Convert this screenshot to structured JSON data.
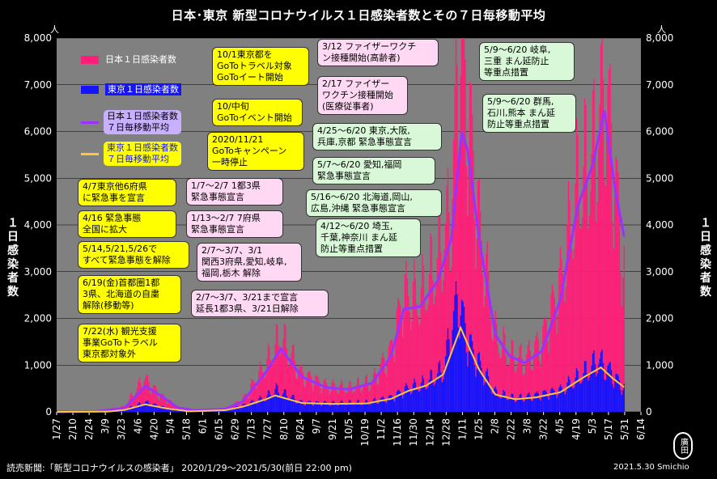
{
  "title": "日本･東京 新型コロナウイルス１日感染者数とその７日毎移動平均",
  "ylabel_left": "１日感染者数",
  "ylabel_right": "１日感染者数",
  "y_unit": "人",
  "legend": [
    {
      "label": "日本１日感染者数",
      "color": "#ff1e78"
    },
    {
      "label": "東京１日感染者数",
      "color": "#1414ff"
    },
    {
      "label": "日本１日感染者数\n７日毎移動平均",
      "color": "#9b30ff"
    },
    {
      "label": "東京１日感染者数\n７日毎移動平均",
      "color": "#ffc83c"
    }
  ],
  "notes": [
    {
      "id": "n1",
      "text": "10/1東京都を\nGoToトラベル対象\nGoToイート開始",
      "style": "yellow"
    },
    {
      "id": "n2",
      "text": "10/中旬\nGoToイベント開始",
      "style": "yellow"
    },
    {
      "id": "n3",
      "text": "2020/11/21\nGoToキャンペーン\n一時停止",
      "style": "yellow"
    },
    {
      "id": "n4",
      "text": "4/7東京他6府県\nに緊急事を宣言",
      "style": "yellow"
    },
    {
      "id": "n5",
      "text": "4/16 緊急事態\n全国に拡大",
      "style": "yellow"
    },
    {
      "id": "n6",
      "text": "5/14,5/21,5/26で\nすべて緊急事態を解除",
      "style": "yellow"
    },
    {
      "id": "n7",
      "text": "6/19(金)首都圏1都\n3県、北海道の自粛\n解除(移動等)",
      "style": "yellow"
    },
    {
      "id": "n8",
      "text": "7/22(水) 観光支援\n事業GoToトラベル\n東京都対象外",
      "style": "yellow"
    },
    {
      "id": "n9",
      "text": "1/7～2/7 1都3県\n緊急事態宣言",
      "style": "pink"
    },
    {
      "id": "n10",
      "text": "1/13～2/7 7府県\n緊急事態宣言",
      "style": "pink"
    },
    {
      "id": "n11",
      "text": "2/7～3/7、3/1\n関西3府県,愛知,岐阜,\n福岡,栃木 解除",
      "style": "pink"
    },
    {
      "id": "n12",
      "text": "2/7～3/7、3/21まで宣言\n延長1都3県、3/21日解除",
      "style": "pink"
    },
    {
      "id": "n13",
      "text": "3/12 ファイザーワクチ\nン接種開始(高齢者)",
      "style": "pink"
    },
    {
      "id": "n14",
      "text": "2/17 ファイザー\nワクチン接種開始\n(医療従事者)",
      "style": "pink"
    },
    {
      "id": "n15",
      "text": "4/25～6/20 東京,大阪,\n兵庫,京都 緊急事態宣言",
      "style": "green"
    },
    {
      "id": "n16",
      "text": "5/7～6/20 愛知,福岡\n緊急事態宣言",
      "style": "green"
    },
    {
      "id": "n17",
      "text": "5/16～6/20 北海道,岡山,\n広島,沖縄 緊急事態宣言",
      "style": "green"
    },
    {
      "id": "n18",
      "text": "4/12～6/20 埼玉,\n千葉,神奈川 まん延\n防止等重点措置",
      "style": "green"
    },
    {
      "id": "n19",
      "text": "5/9～6/20 岐阜,\n三重 まん延防止\n等重点措置",
      "style": "green"
    },
    {
      "id": "n20",
      "text": "5/9～6/20 群馬,\n石川,熊本 まん延\n防止等重点措置",
      "style": "green"
    }
  ],
  "source": "読売新聞:「新型コロナウイルスの感染者」 2020/1/29～2021/5/30(前日 22:00 pm)",
  "credit": "2021.5.30  Smichio",
  "seal": "廣田",
  "chart_data": {
    "type": "bar",
    "x_start": "2020-01-27",
    "x_ticks": [
      "1/27",
      "2/10",
      "2/24",
      "3/9",
      "3/23",
      "4/6",
      "4/20",
      "5/4",
      "5/18",
      "6/1",
      "6/15",
      "6/29",
      "7/13",
      "7/27",
      "8/10",
      "8/24",
      "9/7",
      "9/21",
      "10/5",
      "10/19",
      "11/2",
      "11/16",
      "11/30",
      "12/14",
      "12/28",
      "1/11",
      "1/25",
      "2/8",
      "2/22",
      "3/8",
      "3/22",
      "4/5",
      "4/19",
      "5/3",
      "5/17",
      "5/31",
      "6/14"
    ],
    "y_ticks": [
      "0",
      "1,000",
      "2,000",
      "3,000",
      "4,000",
      "5,000",
      "6,000",
      "7,000",
      "8,000"
    ],
    "ylim": [
      0,
      8000
    ],
    "series": [
      {
        "name": "日本１日感染者数",
        "type": "bar",
        "color": "#ff1e78",
        "keypoints": [
          [
            "2020-01-27",
            0
          ],
          [
            "2020-03-01",
            20
          ],
          [
            "2020-03-25",
            100
          ],
          [
            "2020-04-11",
            700
          ],
          [
            "2020-04-25",
            350
          ],
          [
            "2020-05-10",
            100
          ],
          [
            "2020-05-25",
            30
          ],
          [
            "2020-06-20",
            60
          ],
          [
            "2020-07-05",
            250
          ],
          [
            "2020-07-25",
            1000
          ],
          [
            "2020-08-07",
            1600
          ],
          [
            "2020-08-25",
            800
          ],
          [
            "2020-09-15",
            550
          ],
          [
            "2020-10-05",
            500
          ],
          [
            "2020-10-25",
            650
          ],
          [
            "2020-11-10",
            1300
          ],
          [
            "2020-11-21",
            2500
          ],
          [
            "2020-12-05",
            2400
          ],
          [
            "2020-12-20",
            3200
          ],
          [
            "2021-01-01",
            4300
          ],
          [
            "2021-01-08",
            7900
          ],
          [
            "2021-01-15",
            6500
          ],
          [
            "2021-01-25",
            3900
          ],
          [
            "2021-02-08",
            1600
          ],
          [
            "2021-02-20",
            1200
          ],
          [
            "2021-03-05",
            1100
          ],
          [
            "2021-03-20",
            1500
          ],
          [
            "2021-04-05",
            2700
          ],
          [
            "2021-04-20",
            4800
          ],
          [
            "2021-05-05",
            5500
          ],
          [
            "2021-05-13",
            7000
          ],
          [
            "2021-05-20",
            5500
          ],
          [
            "2021-05-30",
            3000
          ]
        ]
      },
      {
        "name": "東京１日感染者数",
        "type": "bar",
        "color": "#1414ff",
        "keypoints": [
          [
            "2020-01-27",
            0
          ],
          [
            "2020-03-10",
            5
          ],
          [
            "2020-03-25",
            50
          ],
          [
            "2020-04-12",
            200
          ],
          [
            "2020-05-01",
            80
          ],
          [
            "2020-05-20",
            10
          ],
          [
            "2020-06-20",
            40
          ],
          [
            "2020-07-05",
            130
          ],
          [
            "2020-07-25",
            300
          ],
          [
            "2020-08-02",
            470
          ],
          [
            "2020-08-25",
            200
          ],
          [
            "2020-09-20",
            180
          ],
          [
            "2020-10-20",
            200
          ],
          [
            "2020-11-10",
            300
          ],
          [
            "2020-11-25",
            500
          ],
          [
            "2020-12-10",
            600
          ],
          [
            "2020-12-25",
            900
          ],
          [
            "2021-01-07",
            2450
          ],
          [
            "2021-01-15",
            1500
          ],
          [
            "2021-01-25",
            1000
          ],
          [
            "2021-02-08",
            400
          ],
          [
            "2021-02-25",
            280
          ],
          [
            "2021-03-15",
            350
          ],
          [
            "2021-04-05",
            450
          ],
          [
            "2021-04-25",
            800
          ],
          [
            "2021-05-08",
            1100
          ],
          [
            "2021-05-20",
            800
          ],
          [
            "2021-05-30",
            500
          ]
        ]
      },
      {
        "name": "日本１日感染者数\n７日毎移動平均",
        "type": "line",
        "color": "#9b30ff",
        "keypoints": [
          [
            "2020-01-27",
            0
          ],
          [
            "2020-03-01",
            10
          ],
          [
            "2020-03-25",
            80
          ],
          [
            "2020-04-12",
            550
          ],
          [
            "2020-04-25",
            350
          ],
          [
            "2020-05-10",
            90
          ],
          [
            "2020-05-25",
            30
          ],
          [
            "2020-06-20",
            60
          ],
          [
            "2020-07-05",
            220
          ],
          [
            "2020-07-25",
            850
          ],
          [
            "2020-08-07",
            1350
          ],
          [
            "2020-08-25",
            750
          ],
          [
            "2020-09-15",
            520
          ],
          [
            "2020-10-05",
            480
          ],
          [
            "2020-10-25",
            620
          ],
          [
            "2020-11-10",
            1200
          ],
          [
            "2020-11-21",
            2200
          ],
          [
            "2020-12-05",
            2250
          ],
          [
            "2020-12-20",
            2800
          ],
          [
            "2021-01-01",
            3700
          ],
          [
            "2021-01-10",
            6000
          ],
          [
            "2021-01-15",
            5600
          ],
          [
            "2021-01-25",
            3700
          ],
          [
            "2021-02-08",
            1650
          ],
          [
            "2021-02-20",
            1200
          ],
          [
            "2021-03-05",
            1050
          ],
          [
            "2021-03-20",
            1300
          ],
          [
            "2021-04-05",
            2400
          ],
          [
            "2021-04-20",
            4400
          ],
          [
            "2021-05-03",
            5300
          ],
          [
            "2021-05-13",
            6450
          ],
          [
            "2021-05-22",
            4800
          ],
          [
            "2021-05-30",
            3750
          ]
        ]
      },
      {
        "name": "東京１日感染者数\n７日毎移動平均",
        "type": "line",
        "color": "#ffc83c",
        "keypoints": [
          [
            "2020-01-27",
            0
          ],
          [
            "2020-03-10",
            4
          ],
          [
            "2020-03-25",
            40
          ],
          [
            "2020-04-12",
            160
          ],
          [
            "2020-05-01",
            70
          ],
          [
            "2020-05-20",
            10
          ],
          [
            "2020-06-20",
            35
          ],
          [
            "2020-07-05",
            110
          ],
          [
            "2020-07-25",
            270
          ],
          [
            "2020-08-02",
            350
          ],
          [
            "2020-08-25",
            190
          ],
          [
            "2020-09-20",
            170
          ],
          [
            "2020-10-20",
            180
          ],
          [
            "2020-11-10",
            280
          ],
          [
            "2020-11-25",
            450
          ],
          [
            "2020-12-10",
            560
          ],
          [
            "2020-12-25",
            800
          ],
          [
            "2021-01-09",
            1800
          ],
          [
            "2021-01-15",
            1450
          ],
          [
            "2021-01-25",
            900
          ],
          [
            "2021-02-08",
            370
          ],
          [
            "2021-02-25",
            270
          ],
          [
            "2021-03-15",
            310
          ],
          [
            "2021-04-05",
            420
          ],
          [
            "2021-04-25",
            740
          ],
          [
            "2021-05-10",
            950
          ],
          [
            "2021-05-20",
            720
          ],
          [
            "2021-05-30",
            530
          ]
        ]
      }
    ]
  }
}
